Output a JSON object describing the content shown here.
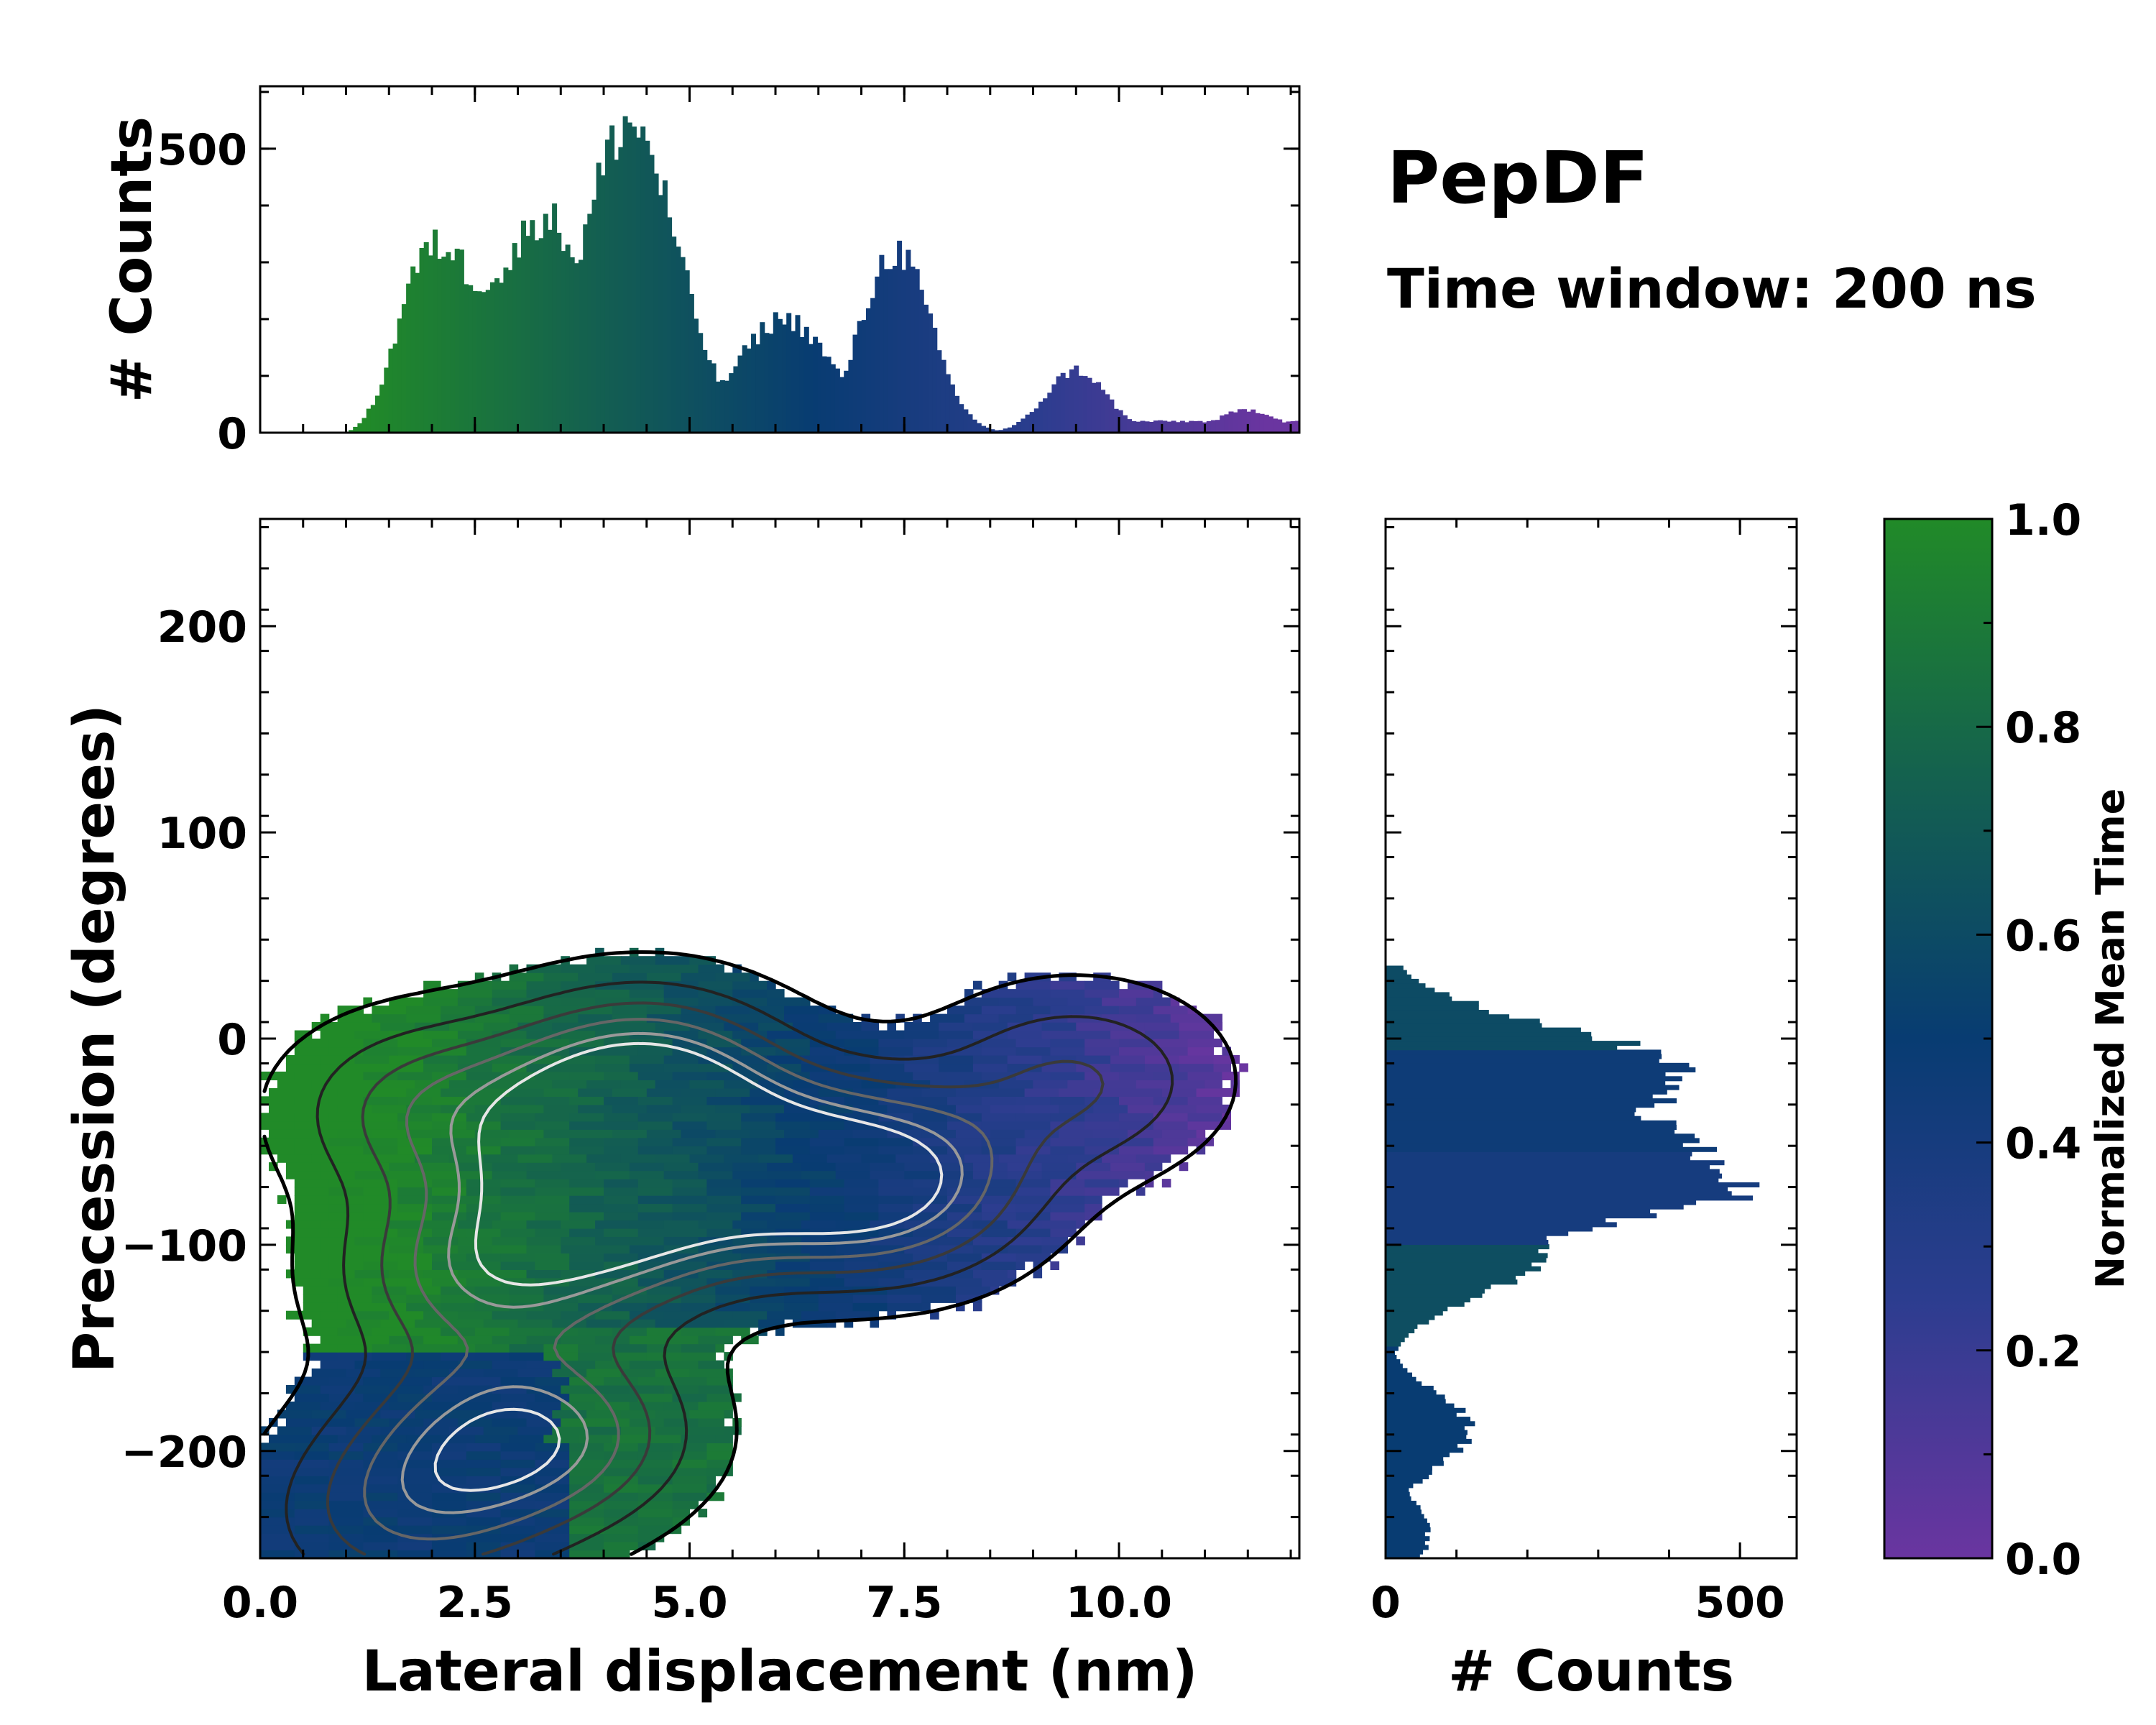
{
  "chart_data": {
    "type": "histogram2d_with_marginals",
    "title": "PepDF",
    "subtitle": "Time window: 200 ns",
    "main_panel": {
      "xlabel": "Lateral displacement (nm)",
      "ylabel": "Precession (degrees)",
      "xlim": [
        0.0,
        12.1
      ],
      "ylim": [
        -252,
        252
      ],
      "xticks": [
        "0.0",
        "2.5",
        "5.0",
        "7.5",
        "10.0"
      ],
      "xtick_values": [
        0.0,
        2.5,
        5.0,
        7.5,
        10.0
      ],
      "yticks": [
        "200",
        "100",
        "0",
        "−100",
        "−200"
      ],
      "ytick_values": [
        200,
        100,
        0,
        -100,
        -200
      ],
      "density_centers": [
        {
          "x": 4.3,
          "y": -50,
          "weight": 1.0
        },
        {
          "x": 7.3,
          "y": -70,
          "weight": 1.0
        },
        {
          "x": 4.5,
          "y": -18,
          "weight": 0.8
        },
        {
          "x": 4.0,
          "y": -90,
          "weight": 0.8
        },
        {
          "x": 2.5,
          "y": -115,
          "weight": 0.7
        },
        {
          "x": 2.0,
          "y": -35,
          "weight": 0.6
        },
        {
          "x": 3.5,
          "y": -190,
          "weight": 0.6
        },
        {
          "x": 2.5,
          "y": -200,
          "weight": 0.6
        },
        {
          "x": 1.6,
          "y": -235,
          "weight": 0.5
        },
        {
          "x": 9.5,
          "y": -20,
          "weight": 0.5
        },
        {
          "x": 6.0,
          "y": -65,
          "weight": 0.7
        }
      ]
    },
    "top_histogram": {
      "ylabel": "# Counts",
      "yticks": [
        "0",
        "500"
      ],
      "ytick_values": [
        0,
        500
      ],
      "ylim": [
        0,
        610
      ],
      "xlim": [
        0.0,
        12.1
      ],
      "peaks": [
        {
          "x": 4.3,
          "count": 545
        },
        {
          "x": 3.3,
          "count": 380
        },
        {
          "x": 2.1,
          "count": 330
        },
        {
          "x": 7.4,
          "count": 320
        },
        {
          "x": 6.1,
          "count": 200
        },
        {
          "x": 9.5,
          "count": 110
        },
        {
          "x": 11.5,
          "count": 40
        }
      ]
    },
    "right_histogram": {
      "xlabel": "# Counts",
      "xticks": [
        "0",
        "500"
      ],
      "xtick_values": [
        0,
        500
      ],
      "xlim": [
        0,
        580
      ],
      "ylim": [
        -252,
        252
      ],
      "peaks": [
        {
          "y": -68,
          "count": 520
        },
        {
          "y": -50,
          "count": 455
        },
        {
          "y": -18,
          "count": 430
        },
        {
          "y": -100,
          "count": 240
        },
        {
          "y": -190,
          "count": 120
        },
        {
          "y": -240,
          "count": 60
        }
      ]
    },
    "colorbar": {
      "label": "Normalized Mean Time",
      "range": [
        0.0,
        1.0
      ],
      "ticks": [
        "1.0",
        "0.8",
        "0.6",
        "0.4",
        "0.2",
        "0.0"
      ],
      "tick_values": [
        1.0,
        0.8,
        0.6,
        0.4,
        0.2,
        0.0
      ],
      "colors": [
        "#6a35a0",
        "#2c3d8f",
        "#083c72",
        "#14614f",
        "#218a28"
      ]
    }
  }
}
